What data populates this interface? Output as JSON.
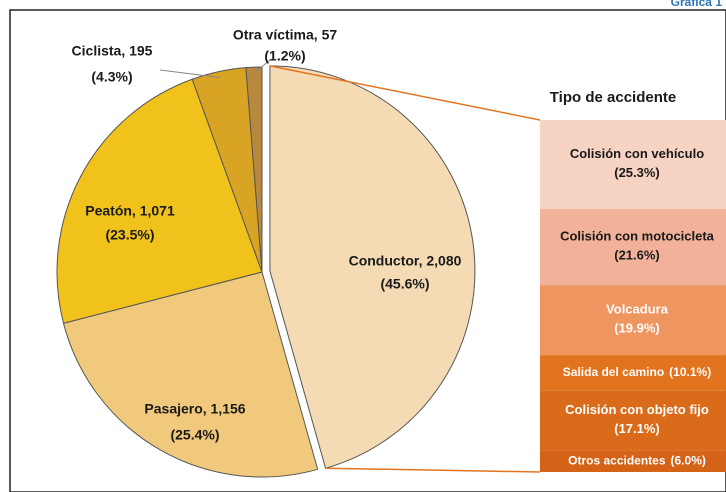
{
  "note": "Gráfica 1",
  "chart_data": {
    "type": "pie",
    "values": [
      2080,
      1156,
      1071,
      195,
      57
    ],
    "value_labels": [
      "Conductor, 2,080",
      "Pasajero, 1,156",
      "Peatón, 1,071",
      "Ciclista, 195",
      "Otra víctima, 57"
    ],
    "percents": [
      45.6,
      25.4,
      23.5,
      4.3,
      1.2
    ],
    "percent_labels": [
      "(45.6%)",
      "(25.4%)",
      "(23.5%)",
      "(4.3%)",
      "(1.2%)"
    ],
    "colors": [
      "#f4dbb4",
      "#f0c97c",
      "#f1c21c",
      "#d9a424",
      "#b8893c"
    ],
    "breakdown": {
      "title": "Tipo de accidente",
      "categories": [
        "Colisión con vehículo",
        "Colisión con motocicleta",
        "Volcadura",
        "Salida del camino",
        "Colisión con objeto fijo",
        "Otros accidentes"
      ],
      "values": [
        25.3,
        21.6,
        19.9,
        10.1,
        17.1,
        6.0
      ],
      "value_labels": [
        "(25.3%)",
        "(21.6%)",
        "(19.9%)",
        "(10.1%)",
        "(17.1%)",
        "(6.0%)"
      ],
      "colors": [
        "#f7d3c4",
        "#f2b29a",
        "#ef9660",
        "#e2741f",
        "#d96b1b",
        "#d46217"
      ],
      "text_colors": [
        "#1a1a1a",
        "#1a1a1a",
        "#ffffff",
        "#ffffff",
        "#ffffff",
        "#ffffff"
      ]
    }
  }
}
